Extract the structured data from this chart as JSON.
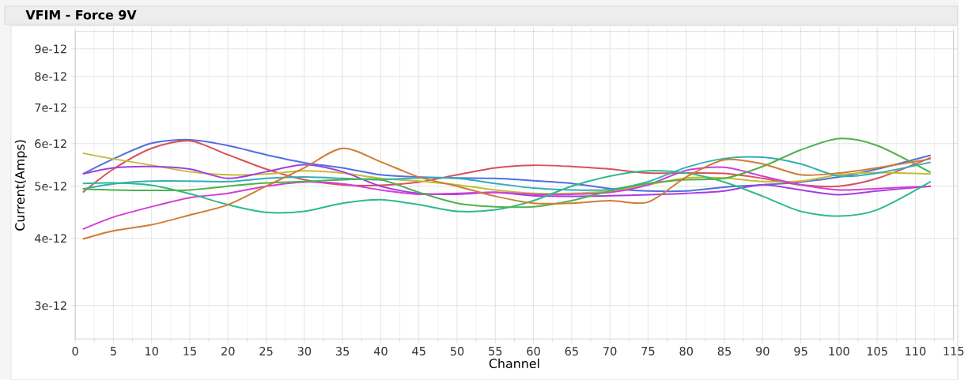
{
  "chart_data": {
    "type": "line",
    "title": "VFIM - Force 9V",
    "xlabel": "Channel",
    "ylabel": "Current(Amps)",
    "log": "y",
    "grid": true,
    "marker": "none",
    "line_style": "solid",
    "xlim": [
      0,
      115
    ],
    "xticks": [
      0,
      5,
      10,
      15,
      20,
      25,
      30,
      35,
      40,
      45,
      50,
      55,
      60,
      65,
      70,
      75,
      80,
      85,
      90,
      95,
      100,
      105,
      110,
      115
    ],
    "ylim": [
      2.6e-12,
      9.7e-12
    ],
    "yticks": [
      3e-12,
      4e-12,
      5e-12,
      6e-12,
      7e-12,
      8e-12,
      9e-12
    ],
    "x": [
      1,
      5,
      10,
      15,
      20,
      25,
      30,
      35,
      40,
      45,
      50,
      55,
      60,
      65,
      70,
      75,
      80,
      85,
      90,
      95,
      100,
      105,
      112
    ],
    "series": [
      {
        "color": "#4f6fe0",
        "values": [
          5.27e-12,
          5.62e-12,
          6.01e-12,
          6.1e-12,
          5.95e-12,
          5.72e-12,
          5.53e-12,
          5.41e-12,
          5.25e-12,
          5.2e-12,
          5.18e-12,
          5.17e-12,
          5.12e-12,
          5.06e-12,
          4.95e-12,
          4.9e-12,
          4.9e-12,
          4.98e-12,
          5.03e-12,
          5.09e-12,
          5.2e-12,
          5.38e-12,
          5.71e-12
        ]
      },
      {
        "color": "#d9505a",
        "values": [
          4.87e-12,
          5.38e-12,
          5.88e-12,
          6.07e-12,
          5.72e-12,
          5.38e-12,
          5.14e-12,
          5.03e-12,
          5.02e-12,
          5.09e-12,
          5.25e-12,
          5.41e-12,
          5.47e-12,
          5.44e-12,
          5.38e-12,
          5.29e-12,
          5.29e-12,
          5.28e-12,
          5.17e-12,
          5.03e-12,
          5e-12,
          5.17e-12,
          5.65e-12
        ]
      },
      {
        "color": "#c4bd35",
        "values": [
          5.76e-12,
          5.62e-12,
          5.47e-12,
          5.32e-12,
          5.25e-12,
          5.27e-12,
          5.34e-12,
          5.29e-12,
          5.17e-12,
          5.11e-12,
          5.03e-12,
          4.92e-12,
          4.85e-12,
          4.85e-12,
          4.9e-12,
          5.03e-12,
          5.18e-12,
          5.18e-12,
          5.1e-12,
          5.11e-12,
          5.25e-12,
          5.3e-12,
          5.27e-12
        ]
      },
      {
        "color": "#a43ee0",
        "values": [
          5.27e-12,
          5.41e-12,
          5.44e-12,
          5.38e-12,
          5.17e-12,
          5.32e-12,
          5.48e-12,
          5.32e-12,
          5e-12,
          4.85e-12,
          4.83e-12,
          4.87e-12,
          4.8e-12,
          4.79e-12,
          4.8e-12,
          4.82e-12,
          4.85e-12,
          4.9e-12,
          5.03e-12,
          4.92e-12,
          4.82e-12,
          4.9e-12,
          5e-12
        ]
      },
      {
        "color": "#d23fd6",
        "values": [
          4.16e-12,
          4.38e-12,
          4.58e-12,
          4.76e-12,
          4.85e-12,
          5e-12,
          5.09e-12,
          5.05e-12,
          4.92e-12,
          4.83e-12,
          4.85e-12,
          4.87e-12,
          4.83e-12,
          4.83e-12,
          4.87e-12,
          5.03e-12,
          5.35e-12,
          5.42e-12,
          5.22e-12,
          5.03e-12,
          4.92e-12,
          4.95e-12,
          5e-12
        ]
      },
      {
        "color": "#30aeb8",
        "values": [
          4.94e-12,
          5.05e-12,
          5.11e-12,
          5.11e-12,
          5.1e-12,
          5.17e-12,
          5.2e-12,
          5.17e-12,
          5.14e-12,
          5.18e-12,
          5.17e-12,
          5.06e-12,
          4.96e-12,
          4.92e-12,
          4.93e-12,
          5.1e-12,
          5.42e-12,
          5.63e-12,
          5.66e-12,
          5.5e-12,
          5.22e-12,
          5.29e-12,
          5.54e-12
        ]
      },
      {
        "color": "#2fb98e",
        "values": [
          5.06e-12,
          5.07e-12,
          5.02e-12,
          4.84e-12,
          4.62e-12,
          4.47e-12,
          4.49e-12,
          4.65e-12,
          4.72e-12,
          4.62e-12,
          4.49e-12,
          4.52e-12,
          4.7e-12,
          5e-12,
          5.22e-12,
          5.34e-12,
          5.29e-12,
          5.09e-12,
          4.79e-12,
          4.49e-12,
          4.4e-12,
          4.52e-12,
          5.1e-12
        ]
      },
      {
        "color": "#4db34a",
        "values": [
          4.94e-12,
          4.92e-12,
          4.91e-12,
          4.92e-12,
          5e-12,
          5.07e-12,
          5.1e-12,
          5.14e-12,
          5.14e-12,
          4.87e-12,
          4.65e-12,
          4.58e-12,
          4.58e-12,
          4.7e-12,
          4.9e-12,
          5.06e-12,
          5.14e-12,
          5.17e-12,
          5.44e-12,
          5.84e-12,
          6.13e-12,
          5.95e-12,
          5.3e-12
        ]
      },
      {
        "color": "#d07c33",
        "values": [
          3.99e-12,
          4.13e-12,
          4.24e-12,
          4.42e-12,
          4.62e-12,
          5e-12,
          5.41e-12,
          5.88e-12,
          5.55e-12,
          5.2e-12,
          5e-12,
          4.79e-12,
          4.65e-12,
          4.65e-12,
          4.7e-12,
          4.67e-12,
          5.2e-12,
          5.6e-12,
          5.5e-12,
          5.25e-12,
          5.29e-12,
          5.41e-12,
          5.62e-12
        ]
      }
    ]
  }
}
